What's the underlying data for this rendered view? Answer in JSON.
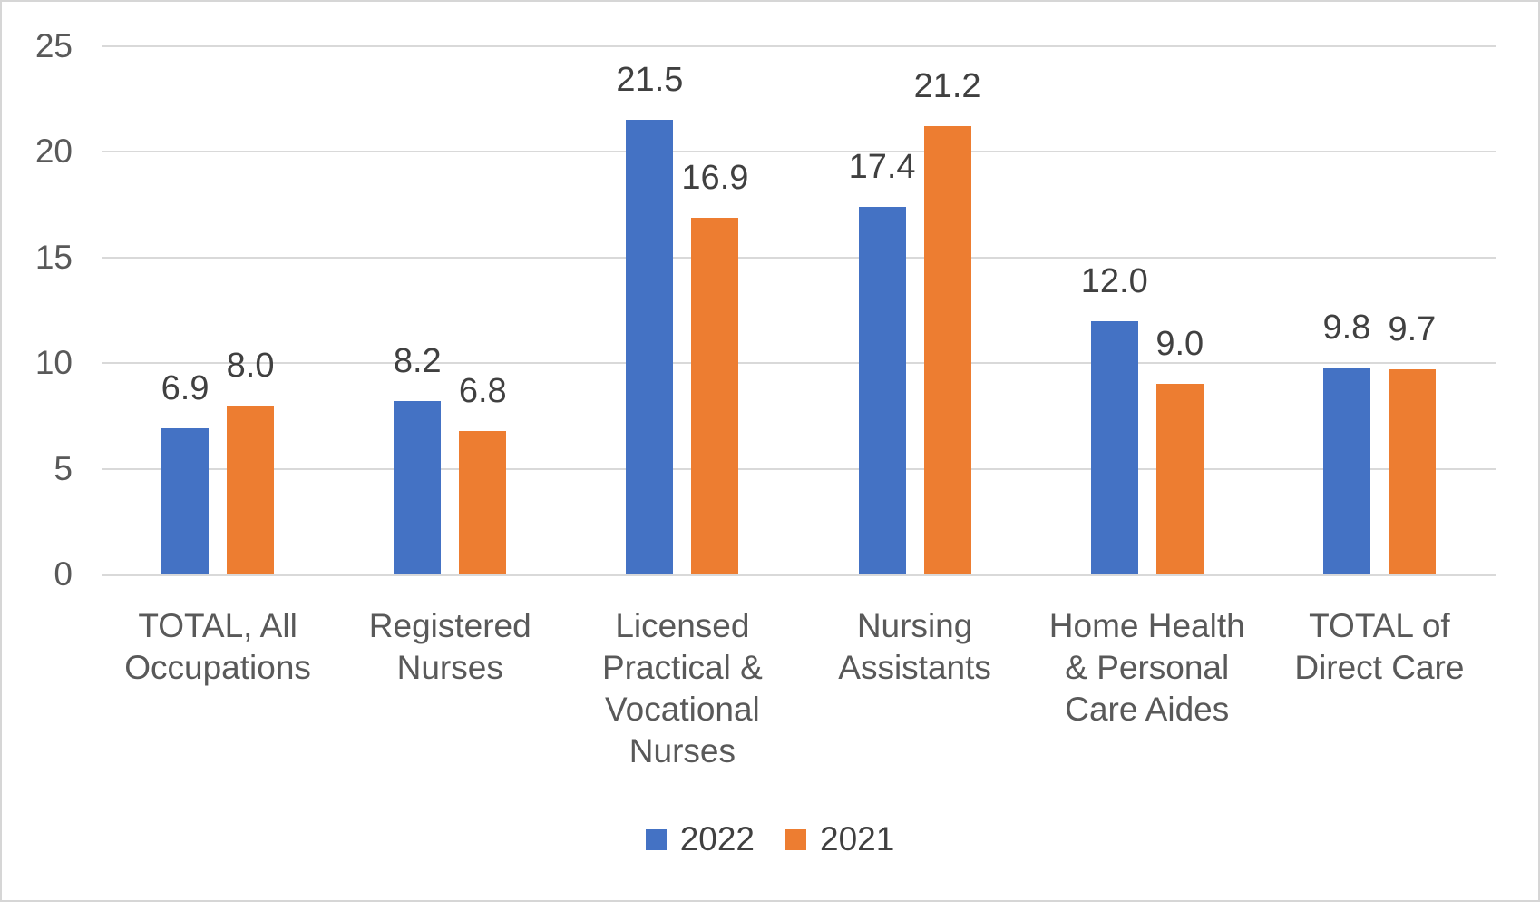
{
  "chart_data": {
    "type": "bar",
    "title": "",
    "xlabel": "",
    "ylabel": "",
    "categories": [
      "TOTAL, All\nOccupations",
      "Registered\nNurses",
      "Licensed\nPractical &\nVocational\nNurses",
      "Nursing\nAssistants",
      "Home Health\n& Personal\nCare Aides",
      "TOTAL of\nDirect Care"
    ],
    "series": [
      {
        "name": "2022",
        "color": "#4472C4",
        "values": [
          6.9,
          8.2,
          21.5,
          17.4,
          12.0,
          9.8
        ],
        "labels": [
          "6.9",
          "8.2",
          "21.5",
          "17.4",
          "12.0",
          "9.8"
        ]
      },
      {
        "name": "2021",
        "color": "#ED7D31",
        "values": [
          8.0,
          6.8,
          16.9,
          21.2,
          9.0,
          9.7
        ],
        "labels": [
          "8.0",
          "6.8",
          "16.9",
          "21.2",
          "9.0",
          "9.7"
        ]
      }
    ],
    "ylim": [
      0,
      25
    ],
    "yticks": [
      "0",
      "5",
      "10",
      "15",
      "20",
      "25"
    ],
    "grid": true,
    "data_labels": true,
    "legend_position": "bottom",
    "legend": [
      "2022",
      "2021"
    ]
  },
  "colors": {
    "series_2022": "#4472C4",
    "series_2021": "#ED7D31",
    "gridline": "#D9D9D9",
    "axis_line": "#D9D9D9",
    "tick_text": "#595959",
    "data_label_text": "#404040",
    "frame_border": "#D6D6D6",
    "background": "#FFFFFF"
  }
}
